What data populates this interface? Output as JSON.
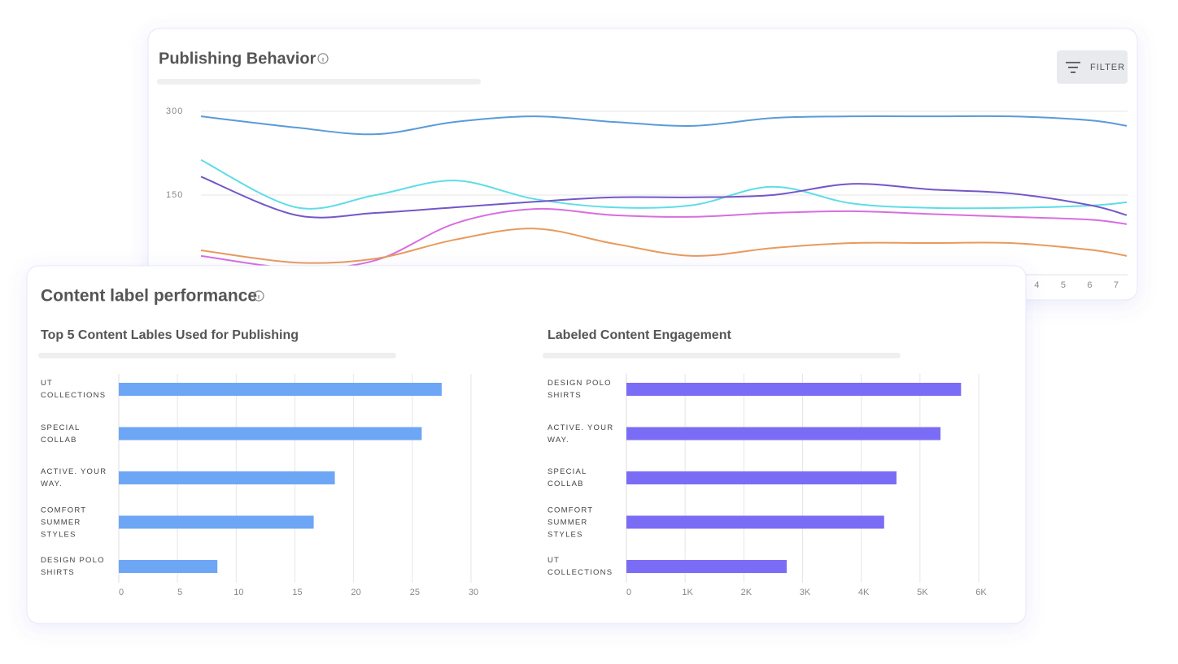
{
  "ui": {
    "filter_button": "FILTER",
    "section_title": "Content label performance"
  },
  "chart_data": [
    {
      "type": "line",
      "title": "Publishing Behavior",
      "x": [
        -27.6,
        -24,
        -21,
        -18,
        -15,
        -12,
        -9,
        -6,
        -3,
        0,
        3,
        6,
        7.4
      ],
      "xlim": [
        -27.6,
        7.4
      ],
      "xticks": [
        4,
        5,
        6,
        7
      ],
      "ylim": [
        0,
        300
      ],
      "yticks": [
        150,
        300
      ],
      "grid": true,
      "series": [
        {
          "color": "#5a9bd8",
          "values": [
            291,
            271,
            259,
            281,
            291,
            281,
            274,
            288,
            291,
            291,
            291,
            284,
            274
          ]
        },
        {
          "color": "#5fdde6",
          "values": [
            213,
            128,
            150,
            176,
            143,
            128,
            132,
            165,
            135,
            127,
            127,
            131,
            137
          ]
        },
        {
          "color": "#7357c9",
          "values": [
            183,
            114,
            118,
            128,
            138,
            146,
            146,
            150,
            170,
            160,
            153,
            132,
            114
          ]
        },
        {
          "color": "#d86ee0",
          "values": [
            41,
            19,
            33,
            99,
            125,
            114,
            111,
            118,
            121,
            116,
            111,
            106,
            98
          ]
        },
        {
          "color": "#e89a5e",
          "values": [
            51,
            29,
            36,
            70,
            90,
            63,
            41,
            55,
            64,
            64,
            64,
            52,
            41
          ]
        }
      ]
    },
    {
      "type": "hbar",
      "title": "Top 5 Content Lables Used for Publishing",
      "categories": [
        "UT COLLECTIONS",
        "SPECIAL COLLAB",
        "ACTIVE. YOUR WAY.",
        "COMFORT SUMMER STYLES",
        "DESIGN POLO SHIRTS"
      ],
      "values": [
        27.5,
        25.8,
        18.4,
        16.6,
        8.4
      ],
      "color": "#6ea6f6",
      "xlim": [
        0,
        30
      ],
      "xticks": [
        0,
        5,
        10,
        15,
        20,
        25,
        30
      ],
      "grid": true
    },
    {
      "type": "hbar",
      "title": "Labeled Content Engagement",
      "categories": [
        "DESIGN POLO SHIRTS",
        "ACTIVE. YOUR WAY.",
        "SPECIAL COLLAB",
        "COMFORT SUMMER STYLES",
        "UT COLLECTIONS"
      ],
      "values": [
        5700,
        5350,
        4600,
        4390,
        2730
      ],
      "color": "#7b6cf6",
      "xlim": [
        0,
        6000
      ],
      "xticks": [
        0,
        {
          "value": 1000,
          "label": "1K"
        },
        {
          "value": 2000,
          "label": "2K"
        },
        {
          "value": 3000,
          "label": "3K"
        },
        {
          "value": 4000,
          "label": "4K"
        },
        {
          "value": 5000,
          "label": "5K"
        },
        {
          "value": 6000,
          "label": "6K"
        }
      ],
      "grid": true
    }
  ]
}
